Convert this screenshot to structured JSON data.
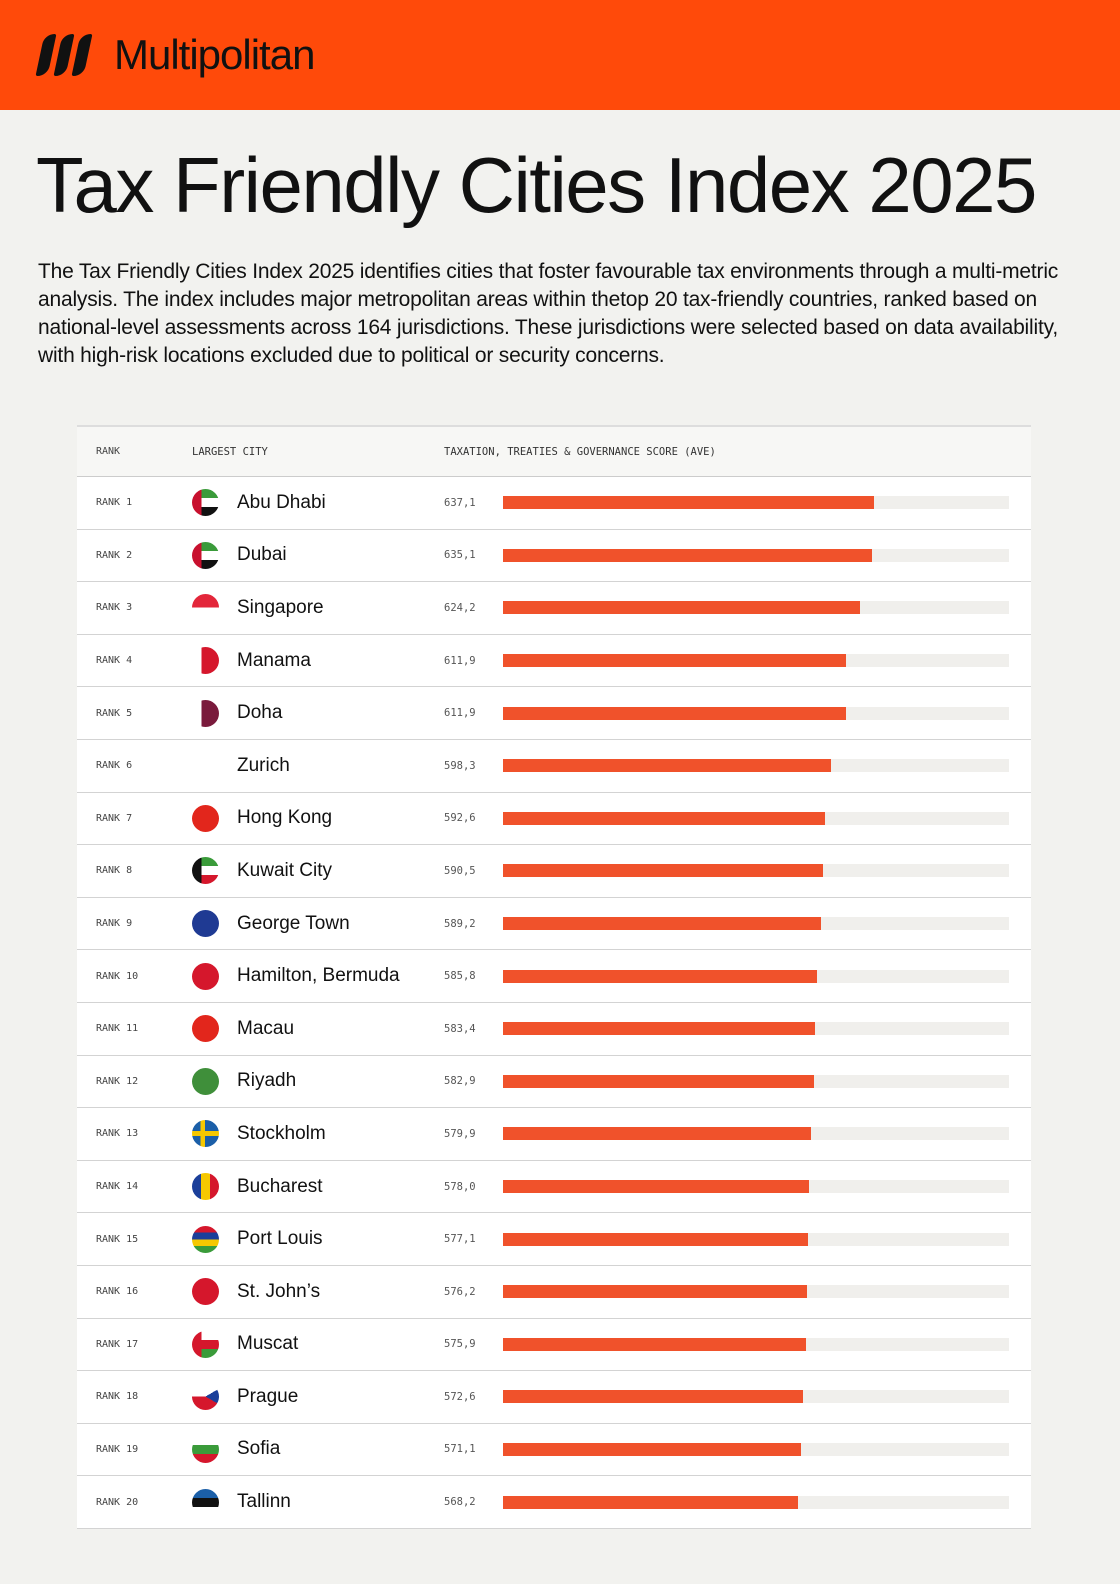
{
  "brand": {
    "name": "Multipolitan"
  },
  "title": "Tax Friendly Cities Index 2025",
  "intro": "The Tax Friendly Cities Index 2025 identifies cities that foster favourable tax environments through a multi-metric analysis. The index includes major metropolitan areas within thetop 20 tax-friendly countries, ranked based on national-level assessments across 164 jurisdictions. These jurisdictions were selected based on data availability, with high-risk locations excluded due to political or security concerns.",
  "colors": {
    "brand": "#ff4a0a",
    "bar": "#f0522b",
    "track": "#f0efec"
  },
  "chart_data": {
    "type": "bar",
    "orientation": "horizontal",
    "columns": [
      "RANK",
      "LARGEST CITY",
      "TAXATION, TREATIES & GOVERNANCE SCORE (AVE)"
    ],
    "xlim": [
      300,
      760
    ],
    "rows": [
      {
        "rank": "RANK 1",
        "city": "Abu Dhabi",
        "score_label": "637,1",
        "value": 637.1,
        "flag": "uae-flag"
      },
      {
        "rank": "RANK 2",
        "city": "Dubai",
        "score_label": "635,1",
        "value": 635.1,
        "flag": "uae-flag"
      },
      {
        "rank": "RANK 3",
        "city": "Singapore",
        "score_label": "624,2",
        "value": 624.2,
        "flag": "singapore-flag"
      },
      {
        "rank": "RANK 4",
        "city": "Manama",
        "score_label": "611,9",
        "value": 611.9,
        "flag": "bahrain-flag"
      },
      {
        "rank": "RANK 5",
        "city": "Doha",
        "score_label": "611,9",
        "value": 611.9,
        "flag": "qatar-flag"
      },
      {
        "rank": "RANK 6",
        "city": "Zurich",
        "score_label": "598,3",
        "value": 598.3,
        "flag": "switzerland-flag"
      },
      {
        "rank": "RANK 7",
        "city": "Hong Kong",
        "score_label": "592,6",
        "value": 592.6,
        "flag": "hong-kong-flag"
      },
      {
        "rank": "RANK 8",
        "city": "Kuwait City",
        "score_label": "590,5",
        "value": 590.5,
        "flag": "kuwait-flag"
      },
      {
        "rank": "RANK 9",
        "city": "George Town",
        "score_label": "589,2",
        "value": 589.2,
        "flag": "cayman-islands-flag"
      },
      {
        "rank": "RANK 10",
        "city": "Hamilton, Bermuda",
        "score_label": "585,8",
        "value": 585.8,
        "flag": "bermuda-flag"
      },
      {
        "rank": "RANK 11",
        "city": "Macau",
        "score_label": "583,4",
        "value": 583.4,
        "flag": "china-flag"
      },
      {
        "rank": "RANK 12",
        "city": "Riyadh",
        "score_label": "582,9",
        "value": 582.9,
        "flag": "saudi-arabia-flag"
      },
      {
        "rank": "RANK 13",
        "city": "Stockholm",
        "score_label": "579,9",
        "value": 579.9,
        "flag": "sweden-flag"
      },
      {
        "rank": "RANK 14",
        "city": "Bucharest",
        "score_label": "578,0",
        "value": 578.0,
        "flag": "romania-flag"
      },
      {
        "rank": "RANK 15",
        "city": "Port Louis",
        "score_label": "577,1",
        "value": 577.1,
        "flag": "mauritius-flag"
      },
      {
        "rank": "RANK 16",
        "city": "St. John’s",
        "score_label": "576,2",
        "value": 576.2,
        "flag": "antigua-flag"
      },
      {
        "rank": "RANK 17",
        "city": "Muscat",
        "score_label": "575,9",
        "value": 575.9,
        "flag": "oman-flag"
      },
      {
        "rank": "RANK 18",
        "city": "Prague",
        "score_label": "572,6",
        "value": 572.6,
        "flag": "czech-flag"
      },
      {
        "rank": "RANK 19",
        "city": "Sofia",
        "score_label": "571,1",
        "value": 571.1,
        "flag": "bulgaria-flag"
      },
      {
        "rank": "RANK 20",
        "city": "Tallinn",
        "score_label": "568,2",
        "value": 568.2,
        "flag": "estonia-flag"
      }
    ]
  }
}
